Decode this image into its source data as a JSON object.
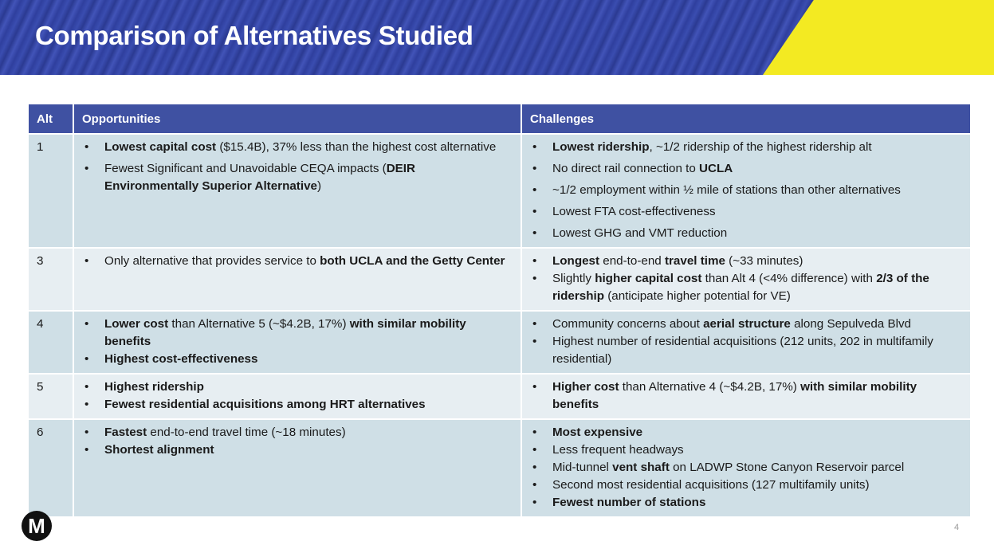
{
  "title": "Comparison of Alternatives Studied",
  "table": {
    "headers": {
      "alt": "Alt",
      "opportunities": "Opportunities",
      "challenges": "Challenges"
    },
    "rows": [
      {
        "alt": "1",
        "opportunities": [
          [
            [
              "Lowest capital cost",
              true
            ],
            [
              " ($15.4B), 37% less than the highest cost alternative",
              false
            ]
          ],
          [
            [
              "Fewest Significant and Unavoidable CEQA impacts (",
              false
            ],
            [
              "DEIR Environmentally Superior Alternative",
              true
            ],
            [
              ")",
              false
            ]
          ]
        ],
        "challenges": [
          [
            [
              "Lowest ridership",
              true
            ],
            [
              ", ~1/2 ridership of the highest ridership alt",
              false
            ]
          ],
          [
            [
              "No direct rail connection to ",
              false
            ],
            [
              "UCLA",
              true
            ]
          ],
          [
            [
              "~1/2 employment within ½ mile of stations than other alternatives",
              false
            ]
          ],
          [
            [
              "Lowest FTA cost-effectiveness",
              false
            ]
          ],
          [
            [
              "Lowest GHG and VMT reduction",
              false
            ]
          ]
        ]
      },
      {
        "alt": "3",
        "opportunities": [
          [
            [
              "Only alternative that provides service to ",
              false
            ],
            [
              "both UCLA and the Getty Center",
              true
            ]
          ]
        ],
        "challenges": [
          [
            [
              "Longest",
              true
            ],
            [
              " end-to-end ",
              false
            ],
            [
              "travel time",
              true
            ],
            [
              " (~33 minutes)",
              false
            ]
          ],
          [
            [
              "Slightly ",
              false
            ],
            [
              "higher capital cost",
              true
            ],
            [
              " than Alt 4 (<4% difference) with ",
              false
            ],
            [
              "2/3 of the ridership",
              true
            ],
            [
              " (anticipate higher potential for VE)",
              false
            ]
          ]
        ]
      },
      {
        "alt": "4",
        "opportunities": [
          [
            [
              "Lower cost",
              true
            ],
            [
              " than Alternative 5 (~$4.2B, 17%) ",
              false
            ],
            [
              "with similar mobility benefits",
              true
            ]
          ],
          [
            [
              "Highest cost-effectiveness",
              true
            ]
          ]
        ],
        "challenges": [
          [
            [
              "Community concerns about ",
              false
            ],
            [
              "aerial structure",
              true
            ],
            [
              " along Sepulveda Blvd",
              false
            ]
          ],
          [
            [
              "Highest number of residential acquisitions (212 units, 202 in multifamily residential)",
              false
            ]
          ]
        ]
      },
      {
        "alt": "5",
        "opportunities": [
          [
            [
              "Highest ridership",
              true
            ]
          ],
          [
            [
              "Fewest residential acquisitions among HRT alternatives",
              true
            ]
          ]
        ],
        "challenges": [
          [
            [
              "Higher cost",
              true
            ],
            [
              " than Alternative 4 (~$4.2B, 17%) ",
              false
            ],
            [
              "with similar mobility benefits",
              true
            ]
          ]
        ]
      },
      {
        "alt": "6",
        "opportunities": [
          [
            [
              "Fastest",
              true
            ],
            [
              " end-to-end travel time (~18 minutes)",
              false
            ]
          ],
          [
            [
              "Shortest alignment",
              true
            ]
          ]
        ],
        "challenges": [
          [
            [
              "Most expensive",
              true
            ]
          ],
          [
            [
              "Less frequent headways",
              false
            ]
          ],
          [
            [
              "Mid-tunnel ",
              false
            ],
            [
              "vent shaft",
              true
            ],
            [
              " on LADWP Stone Canyon Reservoir parcel",
              false
            ]
          ],
          [
            [
              "Second most residential acquisitions (127 multifamily units)",
              false
            ]
          ],
          [
            [
              "Fewest number of stations",
              true
            ]
          ]
        ]
      }
    ]
  },
  "logo_letter": "M",
  "page_number": "4"
}
